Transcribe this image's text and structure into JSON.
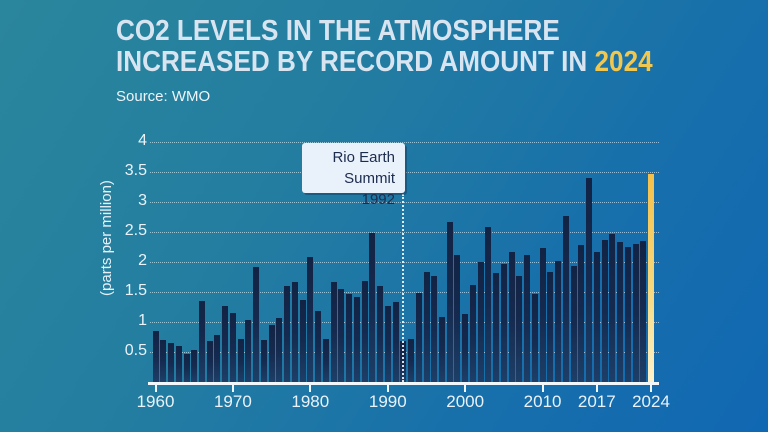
{
  "header": {
    "title_line1": "CO2 LEVELS IN THE ATMOSPHERE",
    "title_line2_prefix": "INCREASED BY RECORD AMOUNT IN ",
    "title_highlight": "2024",
    "source": "Source: WMO"
  },
  "annotation": {
    "line1": "Rio Earth",
    "line2": "Summit 1992",
    "marker_year": 1992
  },
  "colors": {
    "background_top_left": "#2a869c",
    "background_bottom_right": "#1168b2",
    "title_text": "#d8e5f0",
    "highlight_gold": "#f1c74f",
    "bar_navy": "#152a4f",
    "bar_highlight_top": "#f3c04b",
    "bar_highlight_bottom": "#fdf2cc",
    "axis_white": "#f2f7fb",
    "annotation_bg": "#e9f1fb",
    "annotation_text": "#1c2c4f"
  },
  "chart_data": {
    "type": "bar",
    "title": "CO2 levels in the atmosphere increased by record amount in 2024",
    "ylabel": "(parts per million)",
    "ylim": [
      0,
      4
    ],
    "yticks": [
      0.5,
      1,
      1.5,
      2,
      2.5,
      3,
      3.5,
      4
    ],
    "ytick_labels": [
      "0.5",
      "1",
      "1.5",
      "2",
      "2.5",
      "3",
      "3.5",
      "4"
    ],
    "xticks": [
      1960,
      1970,
      1980,
      1990,
      2000,
      2010,
      2017,
      2024
    ],
    "grid": "horizontal dotted, no zero line, legend none",
    "highlight_year": 2024,
    "years": [
      1960,
      1961,
      1962,
      1963,
      1964,
      1965,
      1966,
      1967,
      1968,
      1969,
      1970,
      1971,
      1972,
      1973,
      1974,
      1975,
      1976,
      1977,
      1978,
      1979,
      1980,
      1981,
      1982,
      1983,
      1984,
      1985,
      1986,
      1987,
      1988,
      1989,
      1990,
      1991,
      1992,
      1993,
      1994,
      1995,
      1996,
      1997,
      1998,
      1999,
      2000,
      2001,
      2002,
      2003,
      2004,
      2005,
      2006,
      2007,
      2008,
      2009,
      2010,
      2011,
      2012,
      2013,
      2014,
      2015,
      2016,
      2017,
      2018,
      2019,
      2020,
      2021,
      2022,
      2023,
      2024
    ],
    "values": [
      0.85,
      0.7,
      0.65,
      0.6,
      0.46,
      0.54,
      1.35,
      0.69,
      0.78,
      1.27,
      1.15,
      0.72,
      1.04,
      1.92,
      0.7,
      0.95,
      1.07,
      1.6,
      1.67,
      1.37,
      2.08,
      1.19,
      0.72,
      1.66,
      1.55,
      1.47,
      1.41,
      1.69,
      2.48,
      1.6,
      1.27,
      1.34,
      0.68,
      0.72,
      1.48,
      1.83,
      1.77,
      1.08,
      2.67,
      2.11,
      1.14,
      1.61,
      2.0,
      2.59,
      1.81,
      1.96,
      2.17,
      1.76,
      2.12,
      1.46,
      2.24,
      1.84,
      2.02,
      2.76,
      1.94,
      2.29,
      3.4,
      2.17,
      2.36,
      2.46,
      2.33,
      2.25,
      2.3,
      2.35,
      3.46
    ]
  }
}
